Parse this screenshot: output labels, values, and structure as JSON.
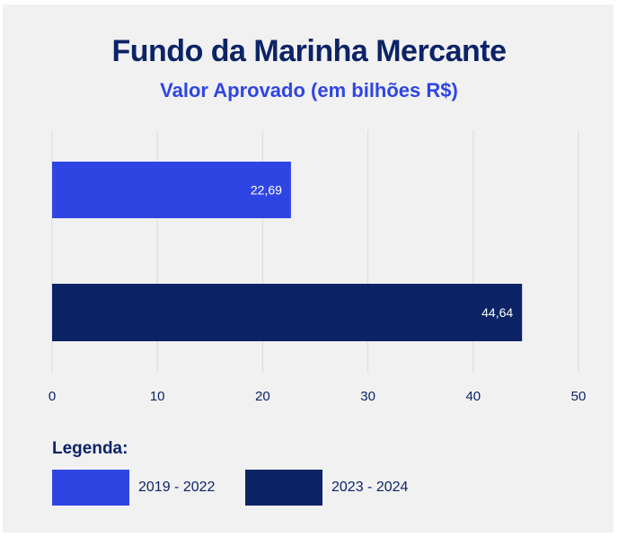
{
  "chart_data": {
    "type": "bar",
    "orientation": "horizontal",
    "title": "Fundo da Marinha Mercante",
    "subtitle": "Valor Aprovado (em bilhões R$)",
    "categories": [
      "2019 - 2022",
      "2023 - 2024"
    ],
    "values": [
      22.69,
      44.64
    ],
    "value_labels": [
      "22,69",
      "44,64"
    ],
    "colors": [
      "#2f45e3",
      "#0c2466"
    ],
    "xlim": [
      0,
      50
    ],
    "xticks": [
      0,
      10,
      20,
      30,
      40,
      50
    ],
    "xtick_labels": [
      "0",
      "10",
      "20",
      "30",
      "40",
      "50"
    ],
    "grid": true,
    "legend_placement": "bottom-left"
  },
  "legend": {
    "title": "Legenda:",
    "items": [
      {
        "label": "2019 - 2022",
        "color": "#2f45e3"
      },
      {
        "label": "2023 - 2024",
        "color": "#0c2466"
      }
    ]
  }
}
